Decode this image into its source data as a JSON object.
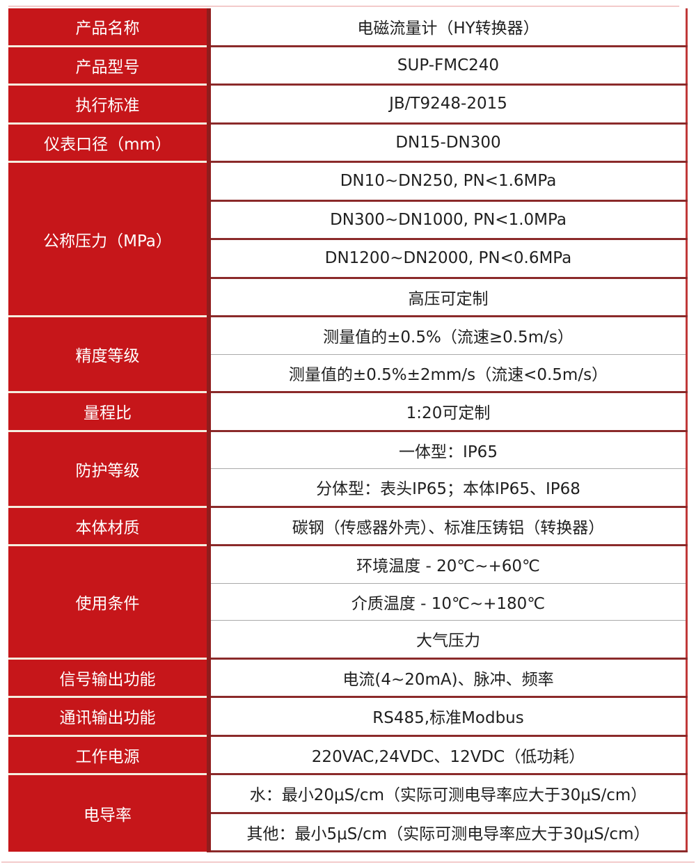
{
  "table": {
    "groups": [
      {
        "label": "产品名称",
        "divider": "solid",
        "values": [
          "电磁流量计（HY转换器）"
        ]
      },
      {
        "label": "产品型号",
        "divider": "solid",
        "values": [
          "SUP-FMC240"
        ]
      },
      {
        "label": "执行标准",
        "divider": "solid",
        "values": [
          "JB/T9248-2015"
        ]
      },
      {
        "label": "仪表口径（mm）",
        "divider": "solid",
        "values": [
          "DN15-DN300"
        ]
      },
      {
        "label": "公称压力（MPa）",
        "divider": "solid",
        "values": [
          "DN10~DN250, PN<1.6MPa",
          "DN300~DN1000, PN<1.0MPa",
          "DN1200~DN2000, PN<0.6MPa",
          "高压可定制"
        ]
      },
      {
        "label": "精度等级",
        "divider": "light",
        "values": [
          "测量值的±0.5%（流速≥0.5m/s）",
          "测量值的±0.5%±2mm/s（流速<0.5m/s）"
        ]
      },
      {
        "label": "量程比",
        "divider": "solid",
        "values": [
          "1:20可定制"
        ]
      },
      {
        "label": "防护等级",
        "divider": "light",
        "values": [
          "一体型：IP65",
          "分体型：表头IP65；本体IP65、IP68"
        ]
      },
      {
        "label": "本体材质",
        "divider": "solid",
        "values": [
          "碳钢（传感器外壳）、标准压铸铝（转换器）"
        ]
      },
      {
        "label": "使用条件",
        "divider": "light",
        "values": [
          "环境温度 - 20℃~+60℃",
          "介质温度 - 10℃~+180℃",
          "大气压力"
        ]
      },
      {
        "label": "信号输出功能",
        "divider": "solid",
        "values": [
          "电流(4~20mA)、脉冲、频率"
        ]
      },
      {
        "label": "通讯输出功能",
        "divider": "solid",
        "values": [
          "RS485,标准Modbus"
        ]
      },
      {
        "label": "工作电源",
        "divider": "solid",
        "values": [
          "220VAC,24VDC、12VDC（低功耗）"
        ]
      },
      {
        "label": "电导率",
        "divider": "solid",
        "values": [
          "水：最小20μS/cm（实际可测电导率应大于30μS/cm）",
          "其他：最小5μS/cm（实际可测电导率应大于30μS/cm）"
        ]
      }
    ],
    "colors": {
      "label_fill": "#c6161a",
      "label_text": "#ffffff",
      "value_text": "#1f1f1f",
      "row_divider": "#8b2a2a",
      "column_divider": "#8f1d1d",
      "right_border": "#c03a3a",
      "group_divider": "#f5eedf",
      "inner_divider_light": "#a9a9a9",
      "accent_line": "#f3caca"
    }
  }
}
